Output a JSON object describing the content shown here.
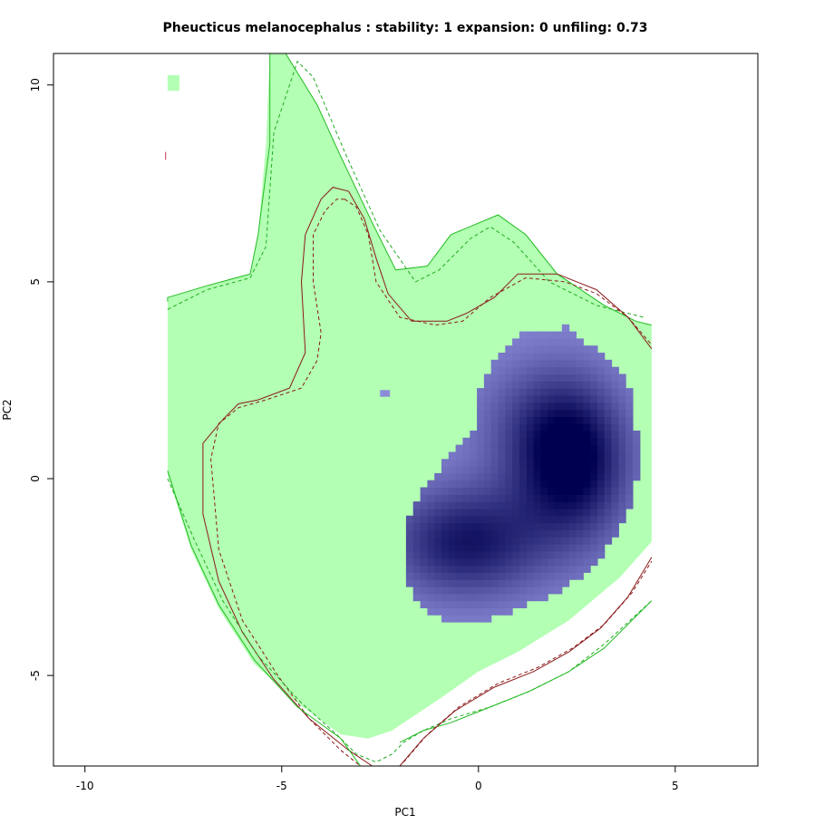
{
  "chart_data": {
    "type": "heatmap",
    "title": "Pheucticus melanocephalus : stability: 1 expansion: 0 unfiling: 0.73",
    "xlabel": "PC1",
    "ylabel": "PC2",
    "xlim": [
      -10.8,
      7.1
    ],
    "ylim": [
      -7.3,
      10.8
    ],
    "xticks": [
      -10,
      -5,
      0,
      5
    ],
    "yticks": [
      -5,
      0,
      5,
      10
    ],
    "xtick_labels": [
      "-10",
      "-5",
      "0",
      "5"
    ],
    "ytick_labels": [
      "-5",
      "0",
      "5",
      "10"
    ],
    "grid": false,
    "legend": "none",
    "colors": {
      "stability_fill": "#b3ffb3",
      "occurrence_density_low": "#8b8bd9",
      "occurrence_density_high": "#000050",
      "native_envelope": "#228b22",
      "invaded_envelope": "#8b0000"
    },
    "regions": {
      "stability_polygon": [
        [
          -5.3,
          10.8
        ],
        [
          -4.9,
          10.8
        ],
        [
          -4.1,
          9.5
        ],
        [
          -3.6,
          8.4
        ],
        [
          -2.7,
          6.5
        ],
        [
          -2.1,
          5.3
        ],
        [
          -1.3,
          5.4
        ],
        [
          -0.7,
          6.2
        ],
        [
          0.5,
          6.7
        ],
        [
          1.2,
          6.2
        ],
        [
          2.0,
          5.2
        ],
        [
          3.2,
          4.4
        ],
        [
          4.0,
          4.0
        ],
        [
          4.4,
          3.9
        ],
        [
          4.4,
          -1.6
        ],
        [
          3.6,
          -2.5
        ],
        [
          2.3,
          -3.6
        ],
        [
          1.0,
          -4.4
        ],
        [
          0.0,
          -4.9
        ],
        [
          -1.0,
          -5.6
        ],
        [
          -2.2,
          -6.4
        ],
        [
          -2.8,
          -6.6
        ],
        [
          -3.5,
          -6.5
        ],
        [
          -4.6,
          -5.7
        ],
        [
          -5.7,
          -4.7
        ],
        [
          -6.6,
          -3.3
        ],
        [
          -7.3,
          -1.8
        ],
        [
          -7.9,
          0.1
        ],
        [
          -7.9,
          4.6
        ],
        [
          -6.9,
          4.9
        ],
        [
          -5.8,
          5.2
        ],
        [
          -5.6,
          6.2
        ],
        [
          -5.4,
          8.5
        ]
      ],
      "stability_islets": [
        {
          "x": [
            -7.9,
            -7.6
          ],
          "y": [
            9.85,
            10.25
          ]
        },
        {
          "x": [
            -2.5,
            -2.25
          ],
          "y": [
            2.08,
            2.25
          ]
        }
      ],
      "density_polygon": [
        [
          2.2,
          3.85
        ],
        [
          3.0,
          3.25
        ],
        [
          3.8,
          2.5
        ],
        [
          4.0,
          1.5
        ],
        [
          4.05,
          0.2
        ],
        [
          3.9,
          -0.6
        ],
        [
          3.2,
          -1.9
        ],
        [
          2.6,
          -2.5
        ],
        [
          1.8,
          -3.0
        ],
        [
          1.0,
          -3.3
        ],
        [
          0.2,
          -3.6
        ],
        [
          -0.6,
          -3.7
        ],
        [
          -1.4,
          -3.3
        ],
        [
          -1.9,
          -2.5
        ],
        [
          -1.8,
          -1.0
        ],
        [
          -1.4,
          -0.2
        ],
        [
          -0.7,
          0.6
        ],
        [
          -0.1,
          1.3
        ],
        [
          0.0,
          2.3
        ],
        [
          0.5,
          3.2
        ],
        [
          1.1,
          3.65
        ]
      ],
      "density_peaks": [
        {
          "x": 2.4,
          "y": 0.4,
          "sx": 1.0,
          "sy": 1.4,
          "w": 1.0
        },
        {
          "x": -0.3,
          "y": -1.6,
          "sx": 1.4,
          "sy": 1.0,
          "w": 0.85
        },
        {
          "x": 1.4,
          "y": 1.4,
          "sx": 1.2,
          "sy": 1.2,
          "w": 0.35
        }
      ]
    },
    "series": [
      {
        "style": "solid",
        "color": "#22bb22",
        "x": [
          -5.3,
          -5.3,
          -5.6,
          -5.8,
          -6.9,
          -7.9,
          -7.9
        ],
        "y": [
          10.8,
          8.5,
          6.2,
          5.2,
          4.9,
          4.6,
          4.5
        ]
      },
      {
        "style": "solid",
        "color": "#22bb22",
        "x": [
          -4.9,
          -4.1,
          -3.6,
          -2.7,
          -2.1,
          -1.3,
          -0.7,
          0.5,
          1.2,
          2.0,
          3.2,
          4.0,
          4.4
        ],
        "y": [
          10.8,
          9.5,
          8.4,
          6.5,
          5.3,
          5.4,
          6.2,
          6.7,
          6.2,
          5.2,
          4.4,
          4.0,
          3.9
        ]
      },
      {
        "style": "dashed",
        "color": "#22aa22",
        "x": [
          -7.9,
          -6.9,
          -5.8,
          -5.4,
          -5.2,
          -4.6,
          -4.2,
          -3.4,
          -2.5,
          -1.6,
          -1.0,
          -0.2,
          0.3,
          0.9,
          1.8,
          3.0,
          4.2
        ],
        "y": [
          4.3,
          4.8,
          5.1,
          5.9,
          8.8,
          10.6,
          10.2,
          8.3,
          6.3,
          5.0,
          5.3,
          6.1,
          6.4,
          6.0,
          5.0,
          4.4,
          4.1
        ]
      },
      {
        "style": "solid",
        "color": "#8b1a1a",
        "x": [
          -4.4,
          -4.5,
          -4.4,
          -4.8,
          -5.6,
          -6.1,
          -6.5,
          -7.0,
          -7.0,
          -6.6,
          -6.0,
          -5.2,
          -4.3,
          -3.3,
          -2.7
        ],
        "y": [
          6.2,
          5.0,
          3.2,
          2.3,
          2.0,
          1.9,
          1.5,
          0.9,
          -0.9,
          -2.6,
          -3.9,
          -5.1,
          -6.1,
          -6.9,
          -7.3
        ]
      },
      {
        "style": "solid",
        "color": "#8b1a1a",
        "x": [
          -4.4,
          -4.0,
          -3.7,
          -3.3,
          -2.9,
          -2.6,
          -2.3,
          -1.7,
          -0.8,
          -0.3,
          0.4,
          1.0,
          2.0,
          3.0,
          3.8,
          4.4
        ],
        "y": [
          6.2,
          7.1,
          7.4,
          7.3,
          6.6,
          5.6,
          4.7,
          4.0,
          4.0,
          4.2,
          4.6,
          5.2,
          5.2,
          4.8,
          4.1,
          3.3
        ]
      },
      {
        "style": "dashed",
        "color": "#8b1a1a",
        "x": [
          -3.4,
          -3.6,
          -3.9,
          -4.2,
          -4.2,
          -4.0,
          -4.1,
          -4.5,
          -5.4,
          -6.1,
          -6.6,
          -6.8,
          -6.6,
          -6.0,
          -5.1,
          -4.3,
          -3.5,
          -3.0,
          -2.7
        ],
        "y": [
          7.1,
          7.1,
          6.8,
          6.2,
          5.0,
          3.7,
          3.0,
          2.3,
          2.0,
          1.8,
          1.4,
          0.5,
          -1.8,
          -3.6,
          -5.0,
          -6.1,
          -6.9,
          -7.3,
          -7.3
        ]
      },
      {
        "style": "dashed",
        "color": "#8b1a1a",
        "x": [
          -3.4,
          -3.1,
          -2.8,
          -2.6,
          -2.0,
          -1.1,
          -0.4,
          0.3,
          1.2,
          2.2,
          3.0,
          3.8,
          4.4
        ],
        "y": [
          7.1,
          6.9,
          6.2,
          5.0,
          4.1,
          3.9,
          4.0,
          4.6,
          5.1,
          5.0,
          4.7,
          4.1,
          3.4
        ]
      },
      {
        "style": "solid",
        "color": "#22bb22",
        "x": [
          -7.9,
          -7.3,
          -6.6,
          -5.7,
          -4.6,
          -3.5,
          -3.0
        ],
        "y": [
          0.2,
          -1.7,
          -3.2,
          -4.6,
          -5.8,
          -6.6,
          -7.3
        ]
      },
      {
        "style": "dashed",
        "color": "#22aa22",
        "x": [
          -7.9,
          -7.2,
          -6.5,
          -5.6,
          -4.5,
          -3.6,
          -3.1,
          -2.6,
          -2.2,
          -1.9,
          -1.4,
          -0.7,
          0.3,
          1.3,
          2.3,
          3.2,
          4.4
        ],
        "y": [
          0.0,
          -1.6,
          -3.1,
          -4.5,
          -5.7,
          -6.5,
          -7.0,
          -7.2,
          -7.0,
          -6.7,
          -6.4,
          -6.1,
          -5.8,
          -5.4,
          -4.9,
          -4.2,
          -3.1
        ]
      },
      {
        "style": "solid",
        "color": "#22bb22",
        "x": [
          -2.0,
          -1.4,
          -0.7,
          0.3,
          1.3,
          2.3,
          3.2,
          4.4
        ],
        "y": [
          -6.7,
          -6.4,
          -6.2,
          -5.8,
          -5.4,
          -4.9,
          -4.3,
          -3.1
        ]
      },
      {
        "style": "solid",
        "color": "#8b1a1a",
        "x": [
          -2.0,
          -1.4,
          -0.6,
          0.4,
          1.4,
          2.3,
          3.1,
          3.8,
          4.4
        ],
        "y": [
          -7.3,
          -6.6,
          -5.9,
          -5.3,
          -4.9,
          -4.4,
          -3.8,
          -3.0,
          -2.0
        ]
      },
      {
        "style": "dashed",
        "color": "#8b1a1a",
        "x": [
          -1.9,
          -1.3,
          -0.5,
          0.5,
          1.5,
          2.4,
          3.2,
          3.9,
          4.4
        ],
        "y": [
          -7.2,
          -6.5,
          -5.8,
          -5.2,
          -4.8,
          -4.3,
          -3.7,
          -2.9,
          -2.1
        ]
      },
      {
        "style": "solid",
        "color": "#cc3355",
        "x": [
          -7.95,
          -7.95
        ],
        "y": [
          8.1,
          8.3
        ]
      }
    ]
  }
}
